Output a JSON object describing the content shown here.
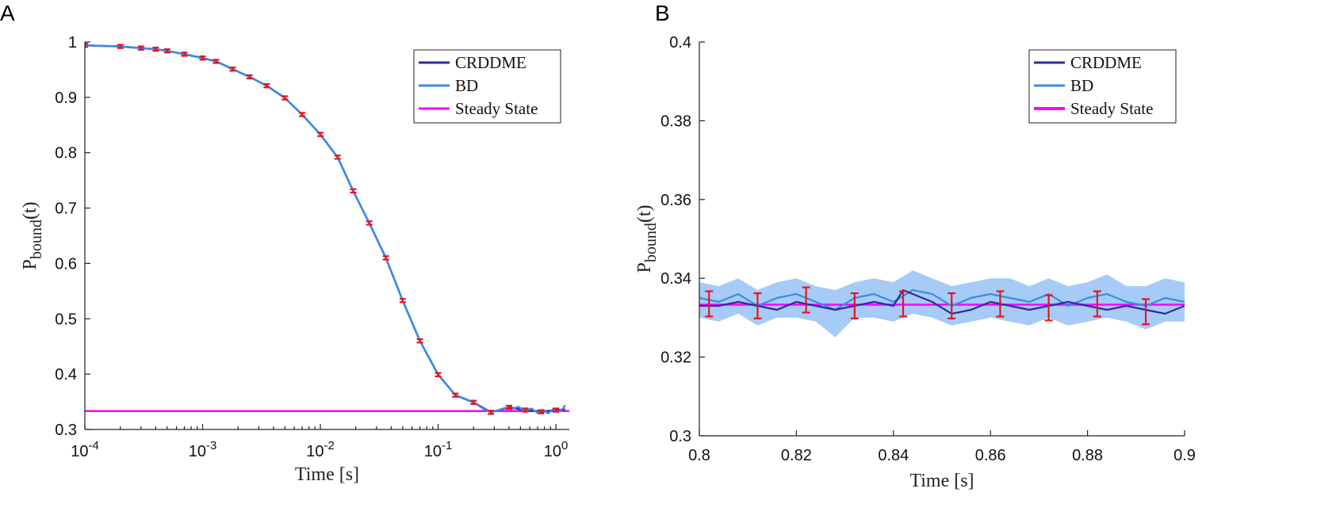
{
  "panels": {
    "a": {
      "label": "A"
    },
    "b": {
      "label": "B"
    }
  },
  "colors": {
    "crddme": "#2e2c9c",
    "bd": "#3a8ae8",
    "bd_band": "#a6cbf6",
    "steady": "#ff00ff",
    "error": "#e8141c"
  },
  "chart_data": [
    {
      "id": "A",
      "type": "line",
      "xscale": "log",
      "xlim": [
        0.0001,
        1.3
      ],
      "ylim": [
        0.3,
        1.0
      ],
      "xlabel": "Time [s]",
      "ylabel_main": "P",
      "ylabel_sub": "bound",
      "ylabel_arg": "(t)",
      "x_ticks": [
        {
          "value": 0.0001,
          "base": "10",
          "exp": "-4"
        },
        {
          "value": 0.001,
          "base": "10",
          "exp": "-3"
        },
        {
          "value": 0.01,
          "base": "10",
          "exp": "-2"
        },
        {
          "value": 0.1,
          "base": "10",
          "exp": "-1"
        },
        {
          "value": 1,
          "base": "10",
          "exp": "0"
        }
      ],
      "y_ticks": [
        {
          "value": 0.3,
          "label": "0.3"
        },
        {
          "value": 0.4,
          "label": "0.4"
        },
        {
          "value": 0.5,
          "label": "0.5"
        },
        {
          "value": 0.6,
          "label": "0.6"
        },
        {
          "value": 0.7,
          "label": "0.7"
        },
        {
          "value": 0.8,
          "label": "0.8"
        },
        {
          "value": 0.9,
          "label": "0.9"
        },
        {
          "value": 1.0,
          "label": "1"
        }
      ],
      "legend": {
        "position": "top-right",
        "entries": [
          {
            "label": "CRDDME",
            "series": "crddme"
          },
          {
            "label": "BD",
            "series": "bd"
          },
          {
            "label": "Steady State",
            "series": "steady"
          }
        ]
      },
      "steady_state": 0.3333,
      "series": [
        {
          "name": "CRDDME",
          "key": "crddme",
          "x": [
            0.0001,
            0.0002,
            0.0003,
            0.0004,
            0.0005,
            0.0007,
            0.001,
            0.0013,
            0.0018,
            0.0025,
            0.0035,
            0.005,
            0.007,
            0.01,
            0.014,
            0.019,
            0.026,
            0.036,
            0.05,
            0.07,
            0.1,
            0.14,
            0.2,
            0.28,
            0.4,
            0.55,
            0.75,
            1.0,
            1.2
          ],
          "y": [
            0.994,
            0.992,
            0.989,
            0.987,
            0.984,
            0.978,
            0.971,
            0.965,
            0.951,
            0.937,
            0.921,
            0.899,
            0.869,
            0.833,
            0.792,
            0.731,
            0.673,
            0.61,
            0.533,
            0.46,
            0.399,
            0.362,
            0.349,
            0.331,
            0.34,
            0.335,
            0.332,
            0.335,
            0.336
          ]
        },
        {
          "name": "BD",
          "key": "bd",
          "x": [
            0.0001,
            0.0002,
            0.0003,
            0.0004,
            0.0005,
            0.0007,
            0.001,
            0.0013,
            0.0018,
            0.0025,
            0.0035,
            0.005,
            0.007,
            0.01,
            0.014,
            0.019,
            0.026,
            0.036,
            0.05,
            0.07,
            0.1,
            0.14,
            0.2,
            0.25,
            0.28,
            0.32,
            0.37,
            0.42,
            0.48,
            0.55,
            0.62,
            0.7,
            0.78,
            0.86,
            0.95,
            1.05,
            1.15,
            1.2
          ],
          "y": [
            0.994,
            0.992,
            0.989,
            0.987,
            0.984,
            0.978,
            0.971,
            0.965,
            0.951,
            0.937,
            0.921,
            0.899,
            0.869,
            0.833,
            0.792,
            0.731,
            0.673,
            0.61,
            0.533,
            0.46,
            0.399,
            0.362,
            0.349,
            0.336,
            0.331,
            0.334,
            0.339,
            0.337,
            0.341,
            0.333,
            0.338,
            0.33,
            0.335,
            0.329,
            0.337,
            0.332,
            0.338,
            0.344
          ]
        }
      ],
      "error_bars": {
        "x": [
          0.0001,
          0.0002,
          0.0003,
          0.0004,
          0.0005,
          0.0007,
          0.001,
          0.0013,
          0.0018,
          0.0025,
          0.0035,
          0.005,
          0.007,
          0.01,
          0.014,
          0.019,
          0.026,
          0.036,
          0.05,
          0.07,
          0.1,
          0.14,
          0.2,
          0.28,
          0.4,
          0.55,
          0.75,
          1.0
        ],
        "y": [
          0.994,
          0.992,
          0.989,
          0.987,
          0.984,
          0.978,
          0.971,
          0.965,
          0.951,
          0.937,
          0.921,
          0.899,
          0.869,
          0.833,
          0.792,
          0.731,
          0.673,
          0.61,
          0.533,
          0.46,
          0.399,
          0.362,
          0.349,
          0.331,
          0.34,
          0.335,
          0.332,
          0.335
        ],
        "err": 0.003
      }
    },
    {
      "id": "B",
      "type": "line",
      "xscale": "linear",
      "xlim": [
        0.8,
        0.9
      ],
      "ylim": [
        0.3,
        0.4
      ],
      "xlabel": "Time [s]",
      "ylabel_main": "P",
      "ylabel_sub": "bound",
      "ylabel_arg": "(t)",
      "x_ticks": [
        {
          "value": 0.8,
          "label": "0.8"
        },
        {
          "value": 0.82,
          "label": "0.82"
        },
        {
          "value": 0.84,
          "label": "0.84"
        },
        {
          "value": 0.86,
          "label": "0.86"
        },
        {
          "value": 0.88,
          "label": "0.88"
        },
        {
          "value": 0.9,
          "label": "0.9"
        }
      ],
      "y_ticks": [
        {
          "value": 0.3,
          "label": "0.3"
        },
        {
          "value": 0.32,
          "label": "0.32"
        },
        {
          "value": 0.34,
          "label": "0.34"
        },
        {
          "value": 0.36,
          "label": "0.36"
        },
        {
          "value": 0.38,
          "label": "0.38"
        },
        {
          "value": 0.4,
          "label": "0.4"
        }
      ],
      "legend": {
        "position": "top-right",
        "entries": [
          {
            "label": "CRDDME",
            "series": "crddme"
          },
          {
            "label": "BD",
            "series": "bd"
          },
          {
            "label": "Steady State",
            "series": "steady"
          }
        ]
      },
      "steady_state": 0.3333,
      "series": [
        {
          "name": "CRDDME",
          "key": "crddme",
          "x": [
            0.8,
            0.804,
            0.808,
            0.812,
            0.816,
            0.82,
            0.824,
            0.828,
            0.832,
            0.836,
            0.84,
            0.842,
            0.844,
            0.848,
            0.852,
            0.856,
            0.86,
            0.864,
            0.868,
            0.872,
            0.876,
            0.88,
            0.884,
            0.888,
            0.892,
            0.896,
            0.9
          ],
          "y": [
            0.333,
            0.333,
            0.334,
            0.333,
            0.332,
            0.334,
            0.333,
            0.332,
            0.333,
            0.334,
            0.333,
            0.337,
            0.336,
            0.334,
            0.331,
            0.332,
            0.334,
            0.333,
            0.332,
            0.333,
            0.334,
            0.333,
            0.332,
            0.333,
            0.332,
            0.331,
            0.333
          ]
        },
        {
          "name": "BD",
          "key": "bd",
          "x": [
            0.8,
            0.804,
            0.808,
            0.812,
            0.816,
            0.82,
            0.824,
            0.828,
            0.832,
            0.836,
            0.84,
            0.844,
            0.848,
            0.852,
            0.856,
            0.86,
            0.864,
            0.868,
            0.872,
            0.876,
            0.88,
            0.884,
            0.888,
            0.892,
            0.896,
            0.9
          ],
          "y": [
            0.335,
            0.334,
            0.336,
            0.333,
            0.335,
            0.336,
            0.334,
            0.332,
            0.335,
            0.336,
            0.334,
            0.337,
            0.336,
            0.333,
            0.335,
            0.336,
            0.335,
            0.334,
            0.336,
            0.333,
            0.335,
            0.336,
            0.334,
            0.333,
            0.335,
            0.334
          ]
        }
      ],
      "bd_band": {
        "x": [
          0.8,
          0.804,
          0.808,
          0.812,
          0.816,
          0.82,
          0.824,
          0.828,
          0.832,
          0.836,
          0.84,
          0.844,
          0.848,
          0.852,
          0.856,
          0.86,
          0.864,
          0.868,
          0.872,
          0.876,
          0.88,
          0.884,
          0.888,
          0.892,
          0.896,
          0.9
        ],
        "upper": [
          0.339,
          0.338,
          0.34,
          0.337,
          0.339,
          0.34,
          0.338,
          0.337,
          0.339,
          0.34,
          0.339,
          0.342,
          0.34,
          0.338,
          0.339,
          0.34,
          0.34,
          0.338,
          0.34,
          0.338,
          0.339,
          0.341,
          0.338,
          0.338,
          0.34,
          0.339
        ],
        "lower": [
          0.33,
          0.329,
          0.331,
          0.328,
          0.33,
          0.33,
          0.329,
          0.325,
          0.33,
          0.33,
          0.329,
          0.331,
          0.33,
          0.328,
          0.329,
          0.33,
          0.329,
          0.328,
          0.33,
          0.328,
          0.329,
          0.33,
          0.329,
          0.327,
          0.329,
          0.329
        ]
      },
      "error_bars": {
        "x": [
          0.802,
          0.812,
          0.822,
          0.832,
          0.842,
          0.852,
          0.862,
          0.872,
          0.882,
          0.892
        ],
        "y": [
          0.3335,
          0.333,
          0.3345,
          0.333,
          0.3335,
          0.333,
          0.3335,
          0.3325,
          0.3335,
          0.3315
        ],
        "err": 0.0032
      }
    }
  ]
}
